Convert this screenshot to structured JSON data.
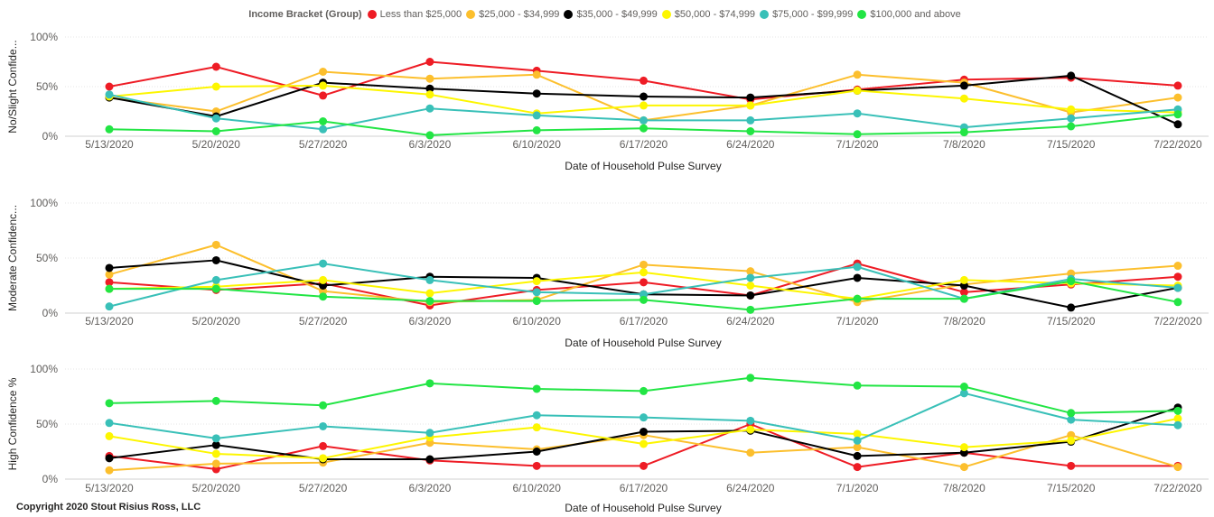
{
  "legend": {
    "title": "Income Bracket (Group)",
    "items": [
      {
        "label": "Less than $25,000",
        "color": "#ee1c25"
      },
      {
        "label": "$25,000 - $34,999",
        "color": "#fcbf2d"
      },
      {
        "label": "$35,000 - $49,999",
        "color": "#000000"
      },
      {
        "label": "$50,000 - $74,999",
        "color": "#fdf600"
      },
      {
        "label": "$75,000 - $99,999",
        "color": "#39c0b8"
      },
      {
        "label": "$100,000 and above",
        "color": "#22e544"
      }
    ]
  },
  "copyright": "Copyright 2020 Stout Risius Ross, LLC",
  "chart_data": [
    {
      "type": "line",
      "xlabel": "Date of Household Pulse Survey",
      "ylabel": "No/Slight Confide...",
      "ylim": [
        0,
        100
      ],
      "yticks": [
        "0%",
        "50%",
        "100%"
      ],
      "grid": true,
      "legend_position": "top-center",
      "categories": [
        "5/13/2020",
        "5/20/2020",
        "5/27/2020",
        "6/3/2020",
        "6/10/2020",
        "6/17/2020",
        "6/24/2020",
        "7/1/2020",
        "7/8/2020",
        "7/15/2020",
        "7/22/2020"
      ],
      "series": [
        {
          "name": "Less than $25,000",
          "color": "#ee1c25",
          "values": [
            50,
            70,
            41,
            75,
            66,
            56,
            37,
            47,
            57,
            59,
            51
          ]
        },
        {
          "name": "$25,000 - $34,999",
          "color": "#fcbf2d",
          "values": [
            39,
            25,
            65,
            58,
            62,
            16,
            31,
            62,
            54,
            24,
            39
          ]
        },
        {
          "name": "$35,000 - $49,999",
          "color": "#000000",
          "values": [
            39,
            20,
            54,
            48,
            43,
            40,
            39,
            46,
            51,
            61,
            12
          ]
        },
        {
          "name": "$50,000 - $74,999",
          "color": "#fdf600",
          "values": [
            40,
            50,
            51,
            42,
            23,
            31,
            31,
            46,
            38,
            27,
            24
          ]
        },
        {
          "name": "$75,000 - $99,999",
          "color": "#39c0b8",
          "values": [
            42,
            18,
            7,
            28,
            21,
            16,
            16,
            23,
            9,
            18,
            27
          ]
        },
        {
          "name": "$100,000 and above",
          "color": "#22e544",
          "values": [
            7,
            5,
            15,
            1,
            6,
            8,
            5,
            2,
            4,
            10,
            22
          ]
        }
      ]
    },
    {
      "type": "line",
      "xlabel": "Date of Household Pulse Survey",
      "ylabel": "Moderate Confidenc...",
      "ylim": [
        0,
        100
      ],
      "yticks": [
        "0%",
        "50%",
        "100%"
      ],
      "grid": true,
      "categories": [
        "5/13/2020",
        "5/20/2020",
        "5/27/2020",
        "6/3/2020",
        "6/10/2020",
        "6/17/2020",
        "6/24/2020",
        "7/1/2020",
        "7/8/2020",
        "7/15/2020",
        "7/22/2020"
      ],
      "series": [
        {
          "name": "Less than $25,000",
          "color": "#ee1c25",
          "values": [
            28,
            21,
            27,
            7,
            21,
            28,
            16,
            45,
            19,
            26,
            33
          ]
        },
        {
          "name": "$25,000 - $34,999",
          "color": "#fcbf2d",
          "values": [
            35,
            62,
            20,
            10,
            12,
            44,
            38,
            10,
            26,
            36,
            43
          ]
        },
        {
          "name": "$35,000 - $49,999",
          "color": "#000000",
          "values": [
            41,
            48,
            25,
            33,
            32,
            17,
            16,
            32,
            25,
            5,
            23
          ]
        },
        {
          "name": "$50,000 - $74,999",
          "color": "#fdf600",
          "values": [
            22,
            24,
            30,
            18,
            29,
            37,
            25,
            13,
            30,
            27,
            25
          ]
        },
        {
          "name": "$75,000 - $99,999",
          "color": "#39c0b8",
          "values": [
            6,
            30,
            45,
            30,
            19,
            17,
            32,
            42,
            13,
            31,
            23
          ]
        },
        {
          "name": "$100,000 and above",
          "color": "#22e544",
          "values": [
            22,
            22,
            15,
            11,
            11,
            12,
            3,
            13,
            13,
            29,
            10
          ]
        }
      ]
    },
    {
      "type": "line",
      "xlabel": "Date of Household Pulse Survey",
      "ylabel": "High Confidence %",
      "ylim": [
        0,
        100
      ],
      "yticks": [
        "0%",
        "50%",
        "100%"
      ],
      "grid": true,
      "categories": [
        "5/13/2020",
        "5/20/2020",
        "5/27/2020",
        "6/3/2020",
        "6/10/2020",
        "6/17/2020",
        "6/24/2020",
        "7/1/2020",
        "7/8/2020",
        "7/15/2020",
        "7/22/2020"
      ],
      "series": [
        {
          "name": "Less than $25,000",
          "color": "#ee1c25",
          "values": [
            21,
            9,
            30,
            17,
            12,
            12,
            50,
            11,
            24,
            12,
            12
          ]
        },
        {
          "name": "$25,000 - $34,999",
          "color": "#fcbf2d",
          "values": [
            8,
            14,
            15,
            33,
            27,
            40,
            24,
            29,
            11,
            40,
            11
          ]
        },
        {
          "name": "$35,000 - $49,999",
          "color": "#000000",
          "values": [
            19,
            31,
            18,
            18,
            25,
            43,
            44,
            21,
            24,
            34,
            65
          ]
        },
        {
          "name": "$50,000 - $74,999",
          "color": "#fdf600",
          "values": [
            39,
            23,
            19,
            38,
            47,
            32,
            45,
            41,
            29,
            35,
            55
          ]
        },
        {
          "name": "$75,000 - $99,999",
          "color": "#39c0b8",
          "values": [
            51,
            37,
            48,
            42,
            58,
            56,
            53,
            35,
            78,
            54,
            49
          ]
        },
        {
          "name": "$100,000 and above",
          "color": "#22e544",
          "values": [
            69,
            71,
            67,
            87,
            82,
            80,
            92,
            85,
            84,
            60,
            62
          ]
        }
      ]
    }
  ]
}
